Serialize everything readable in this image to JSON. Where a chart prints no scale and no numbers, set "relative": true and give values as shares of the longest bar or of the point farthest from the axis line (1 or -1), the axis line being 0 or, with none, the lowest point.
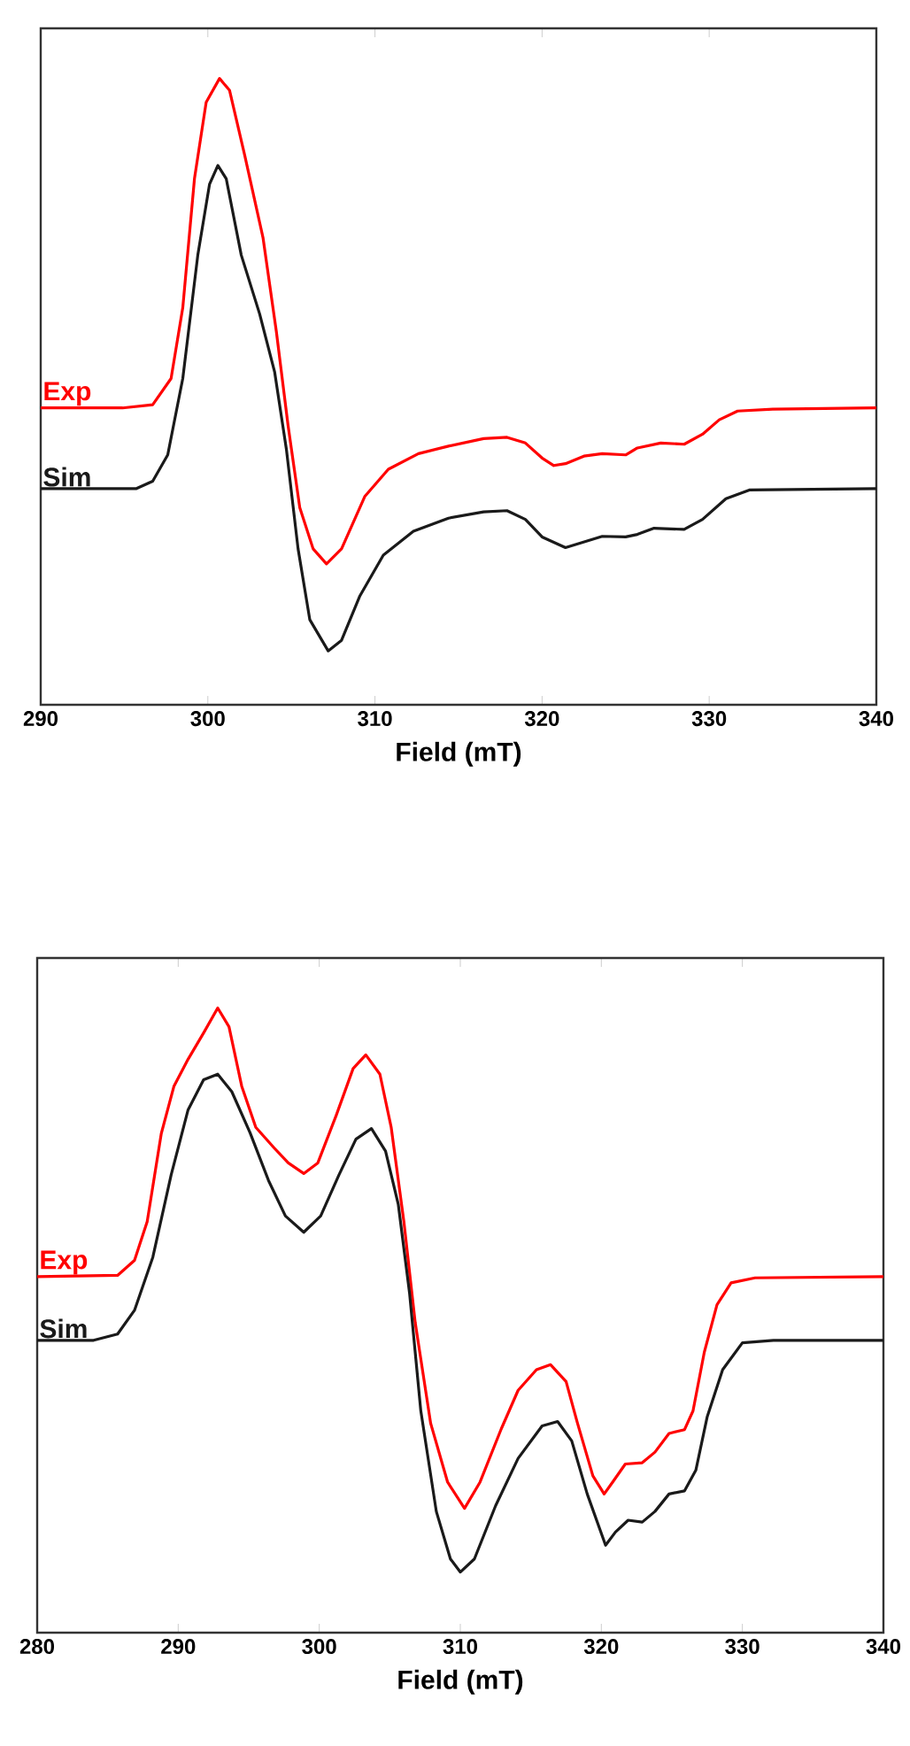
{
  "chart_data": [
    {
      "type": "line",
      "relative": true,
      "xlabel": "Field (mT)",
      "xlim": [
        290,
        340
      ],
      "xticks": [
        290,
        300,
        310,
        320,
        330,
        340
      ],
      "tick_labels": "x",
      "legend": false,
      "series": [
        {
          "name": "Exp",
          "color": "#ff0000",
          "x": [
            290.0,
            294.9,
            296.7,
            297.8,
            298.5,
            299.2,
            299.9,
            300.7,
            301.3,
            302.2,
            303.3,
            304.1,
            304.8,
            305.5,
            306.3,
            307.1,
            308.0,
            309.4,
            310.8,
            312.6,
            314.4,
            316.5,
            317.9,
            319.0,
            320.0,
            320.7,
            321.4,
            322.5,
            323.6,
            325.0,
            325.7,
            327.1,
            328.5,
            329.6,
            330.6,
            331.7,
            333.8,
            340.0
          ],
          "values": [
            0.474,
            0.474,
            0.479,
            0.521,
            0.634,
            0.84,
            0.962,
            1.0,
            0.981,
            0.878,
            0.746,
            0.596,
            0.446,
            0.315,
            0.249,
            0.225,
            0.249,
            0.333,
            0.376,
            0.401,
            0.413,
            0.425,
            0.427,
            0.418,
            0.394,
            0.382,
            0.385,
            0.397,
            0.401,
            0.399,
            0.41,
            0.418,
            0.416,
            0.432,
            0.455,
            0.469,
            0.472,
            0.474
          ]
        },
        {
          "name": "Sim",
          "color": "#1a1a1a",
          "x": [
            290.0,
            295.7,
            296.7,
            297.6,
            298.5,
            299.4,
            300.1,
            300.6,
            301.1,
            302.0,
            303.1,
            304.0,
            304.7,
            305.4,
            306.1,
            307.2,
            308.0,
            309.1,
            310.5,
            312.3,
            314.4,
            316.5,
            317.9,
            319.0,
            320.0,
            321.4,
            322.5,
            323.6,
            325.0,
            325.7,
            326.7,
            328.5,
            329.6,
            331.0,
            332.4,
            340.0
          ],
          "values": [
            0.345,
            0.345,
            0.357,
            0.399,
            0.521,
            0.718,
            0.831,
            0.861,
            0.84,
            0.718,
            0.624,
            0.531,
            0.408,
            0.249,
            0.136,
            0.086,
            0.103,
            0.174,
            0.239,
            0.277,
            0.298,
            0.308,
            0.31,
            0.296,
            0.268,
            0.251,
            0.26,
            0.269,
            0.268,
            0.272,
            0.282,
            0.28,
            0.296,
            0.329,
            0.343,
            0.345
          ]
        }
      ]
    },
    {
      "type": "line",
      "relative": true,
      "xlabel": "Field (mT)",
      "xlim": [
        280,
        340
      ],
      "xticks": [
        280,
        290,
        300,
        310,
        320,
        330,
        340
      ],
      "tick_labels": "x",
      "legend": false,
      "series": [
        {
          "name": "Exp",
          "color": "#ff0000",
          "x": [
            280.0,
            285.7,
            286.9,
            287.8,
            288.8,
            289.7,
            290.7,
            291.8,
            292.8,
            293.6,
            294.5,
            295.5,
            296.8,
            297.8,
            298.9,
            299.9,
            301.2,
            302.4,
            303.3,
            304.3,
            305.1,
            306.0,
            306.8,
            307.9,
            309.1,
            310.3,
            311.4,
            312.9,
            314.1,
            315.4,
            316.4,
            317.5,
            318.3,
            319.4,
            320.2,
            320.8,
            321.7,
            322.9,
            323.8,
            324.8,
            325.9,
            326.5,
            327.3,
            328.2,
            329.2,
            330.9,
            340.0
          ],
          "values": [
            0.57,
            0.572,
            0.596,
            0.658,
            0.799,
            0.875,
            0.918,
            0.96,
            1.0,
            0.97,
            0.875,
            0.809,
            0.776,
            0.752,
            0.735,
            0.752,
            0.828,
            0.903,
            0.925,
            0.894,
            0.809,
            0.658,
            0.497,
            0.335,
            0.241,
            0.199,
            0.241,
            0.326,
            0.388,
            0.421,
            0.429,
            0.402,
            0.336,
            0.251,
            0.222,
            0.241,
            0.27,
            0.272,
            0.289,
            0.319,
            0.325,
            0.355,
            0.449,
            0.525,
            0.56,
            0.568,
            0.57
          ]
        },
        {
          "name": "Sim",
          "color": "#1a1a1a",
          "x": [
            280.0,
            284.0,
            285.7,
            286.9,
            288.2,
            289.5,
            290.7,
            291.8,
            292.8,
            293.8,
            295.1,
            296.4,
            297.6,
            298.9,
            300.1,
            301.4,
            302.6,
            303.7,
            304.7,
            305.6,
            306.4,
            307.2,
            308.3,
            309.3,
            310.0,
            311.0,
            312.5,
            314.1,
            315.8,
            316.9,
            317.9,
            319.0,
            320.3,
            321.0,
            321.9,
            322.9,
            323.8,
            324.8,
            325.9,
            326.7,
            327.5,
            328.6,
            330.0,
            332.2,
            340.0
          ],
          "values": [
            0.468,
            0.468,
            0.478,
            0.516,
            0.601,
            0.733,
            0.837,
            0.885,
            0.894,
            0.866,
            0.8,
            0.724,
            0.667,
            0.641,
            0.667,
            0.733,
            0.79,
            0.807,
            0.771,
            0.686,
            0.544,
            0.355,
            0.194,
            0.118,
            0.097,
            0.118,
            0.203,
            0.279,
            0.331,
            0.338,
            0.307,
            0.222,
            0.14,
            0.161,
            0.18,
            0.177,
            0.194,
            0.222,
            0.227,
            0.26,
            0.345,
            0.421,
            0.464,
            0.468,
            0.468
          ]
        }
      ]
    }
  ]
}
